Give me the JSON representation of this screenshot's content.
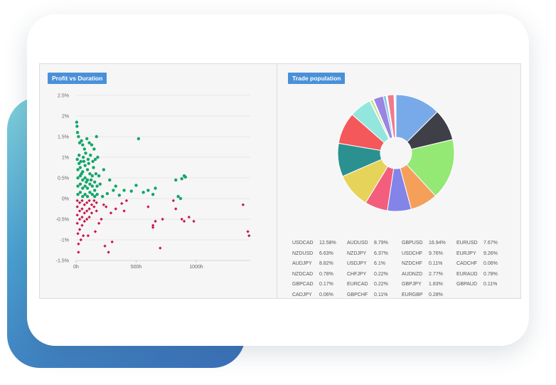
{
  "left_panel": {
    "title": "Profit vs Duration"
  },
  "right_panel": {
    "title": "Trade population"
  },
  "colors": {
    "profit": "#13a669",
    "loss": "#c8174d",
    "badge": "#4a90d9"
  },
  "chart_data": [
    {
      "type": "scatter",
      "title": "Profit vs Duration",
      "xlabel": "",
      "ylabel": "",
      "xlim": [
        0,
        1450
      ],
      "ylim": [
        -1.5,
        2.5
      ],
      "x_ticks": [
        "0h",
        "500h",
        "1000h"
      ],
      "x_tick_values": [
        0,
        500,
        1000
      ],
      "y_ticks": [
        "2.5%",
        "2%",
        "1.5%",
        "1%",
        "0.5%",
        "0%",
        "-0.5%",
        "-1%",
        "-1.5%"
      ],
      "y_tick_values": [
        2.5,
        2,
        1.5,
        1,
        0.5,
        0,
        -0.5,
        -1,
        -1.5
      ],
      "grid": true,
      "series": [
        {
          "color": "#13a669",
          "marker": "circle",
          "points": [
            [
              5,
              1.85
            ],
            [
              8,
              1.75
            ],
            [
              12,
              1.6
            ],
            [
              20,
              1.5
            ],
            [
              30,
              1.35
            ],
            [
              45,
              1.4
            ],
            [
              55,
              1.3
            ],
            [
              70,
              1.2
            ],
            [
              90,
              1.45
            ],
            [
              110,
              1.35
            ],
            [
              130,
              1.3
            ],
            [
              150,
              1.2
            ],
            [
              170,
              1.5
            ],
            [
              520,
              1.45
            ],
            [
              10,
              0.95
            ],
            [
              25,
              1.05
            ],
            [
              40,
              0.9
            ],
            [
              60,
              1.0
            ],
            [
              80,
              1.1
            ],
            [
              100,
              0.95
            ],
            [
              120,
              1.05
            ],
            [
              140,
              0.9
            ],
            [
              160,
              0.95
            ],
            [
              180,
              1.0
            ],
            [
              230,
              0.7
            ],
            [
              280,
              0.45
            ],
            [
              330,
              0.3
            ],
            [
              400,
              0.2
            ],
            [
              460,
              0.18
            ],
            [
              500,
              0.32
            ],
            [
              560,
              0.15
            ],
            [
              600,
              0.2
            ],
            [
              640,
              0.1
            ],
            [
              660,
              0.25
            ],
            [
              830,
              0.45
            ],
            [
              850,
              0.05
            ],
            [
              880,
              0.48
            ],
            [
              900,
              0.55
            ],
            [
              910,
              0.52
            ],
            [
              870,
              0.0
            ],
            [
              360,
              0.08
            ],
            [
              310,
              0.2
            ],
            [
              260,
              0.12
            ],
            [
              220,
              0.05
            ],
            [
              200,
              0.35
            ],
            [
              190,
              0.55
            ],
            [
              15,
              0.1
            ],
            [
              15,
              0.3
            ],
            [
              15,
              0.5
            ],
            [
              15,
              0.7
            ],
            [
              35,
              0.15
            ],
            [
              35,
              0.35
            ],
            [
              35,
              0.55
            ],
            [
              35,
              0.75
            ],
            [
              55,
              0.05
            ],
            [
              55,
              0.25
            ],
            [
              55,
              0.45
            ],
            [
              55,
              0.65
            ],
            [
              75,
              0.1
            ],
            [
              75,
              0.3
            ],
            [
              75,
              0.5
            ],
            [
              75,
              0.8
            ],
            [
              95,
              0.05
            ],
            [
              95,
              0.25
            ],
            [
              95,
              0.45
            ],
            [
              95,
              0.7
            ],
            [
              115,
              0.15
            ],
            [
              115,
              0.35
            ],
            [
              115,
              0.6
            ],
            [
              135,
              0.1
            ],
            [
              135,
              0.3
            ],
            [
              135,
              0.55
            ],
            [
              155,
              0.05
            ],
            [
              155,
              0.2
            ],
            [
              155,
              0.4
            ],
            [
              175,
              0.1
            ],
            [
              175,
              0.3
            ],
            [
              25,
              0.85
            ],
            [
              65,
              0.9
            ],
            [
              105,
              0.85
            ],
            [
              145,
              0.75
            ],
            [
              45,
              0.6
            ],
            [
              85,
              0.4
            ],
            [
              125,
              0.45
            ],
            [
              165,
              0.6
            ]
          ]
        },
        {
          "color": "#c8174d",
          "marker": "diamond",
          "points": [
            [
              10,
              -0.05
            ],
            [
              10,
              -0.2
            ],
            [
              10,
              -0.4
            ],
            [
              10,
              -0.6
            ],
            [
              30,
              -0.1
            ],
            [
              30,
              -0.3
            ],
            [
              30,
              -0.5
            ],
            [
              30,
              -0.75
            ],
            [
              50,
              -0.05
            ],
            [
              50,
              -0.25
            ],
            [
              50,
              -0.45
            ],
            [
              50,
              -0.65
            ],
            [
              70,
              -0.15
            ],
            [
              70,
              -0.35
            ],
            [
              70,
              -0.55
            ],
            [
              90,
              -0.1
            ],
            [
              90,
              -0.3
            ],
            [
              90,
              -0.5
            ],
            [
              110,
              -0.05
            ],
            [
              110,
              -0.25
            ],
            [
              110,
              -0.45
            ],
            [
              130,
              -0.15
            ],
            [
              130,
              -0.35
            ],
            [
              150,
              -0.05
            ],
            [
              150,
              -0.2
            ],
            [
              170,
              -0.1
            ],
            [
              170,
              -0.3
            ],
            [
              20,
              -1.1
            ],
            [
              20,
              -1.3
            ],
            [
              40,
              -1.0
            ],
            [
              60,
              -0.9
            ],
            [
              15,
              -0.85
            ],
            [
              100,
              -0.9
            ],
            [
              160,
              -0.8
            ],
            [
              190,
              -0.6
            ],
            [
              240,
              -1.15
            ],
            [
              270,
              -1.3
            ],
            [
              300,
              -1.05
            ],
            [
              210,
              -0.5
            ],
            [
              250,
              -0.2
            ],
            [
              330,
              -0.25
            ],
            [
              400,
              -0.3
            ],
            [
              420,
              -0.05
            ],
            [
              600,
              -0.2
            ],
            [
              640,
              -0.65
            ],
            [
              660,
              -0.55
            ],
            [
              700,
              -1.2
            ],
            [
              640,
              -0.7
            ],
            [
              720,
              -0.5
            ],
            [
              810,
              -0.05
            ],
            [
              830,
              -0.25
            ],
            [
              880,
              -0.5
            ],
            [
              900,
              -0.55
            ],
            [
              940,
              -0.45
            ],
            [
              980,
              -0.55
            ],
            [
              1390,
              -0.15
            ],
            [
              1430,
              -0.8
            ],
            [
              1440,
              -0.9
            ],
            [
              290,
              -0.35
            ],
            [
              230,
              -0.15
            ],
            [
              380,
              -0.12
            ]
          ]
        }
      ]
    },
    {
      "type": "pie",
      "title": "Trade population",
      "slices": [
        {
          "label": "USDCAD",
          "value_text": "12.58%",
          "value": 12.58,
          "color": "#78aaea"
        },
        {
          "label": "AUDUSD",
          "value_text": "8.79%",
          "value": 8.79,
          "color": "#3f3f47"
        },
        {
          "label": "GBPUSD",
          "value_text": "16.94%",
          "value": 16.94,
          "color": "#94e874"
        },
        {
          "label": "EURUSD",
          "value_text": "7.67%",
          "value": 7.67,
          "color": "#f5a05a"
        },
        {
          "label": "NZDUSD",
          "value_text": "6.63%",
          "value": 6.63,
          "color": "#8284e8"
        },
        {
          "label": "NZDJPY",
          "value_text": "6.37%",
          "value": 6.37,
          "color": "#f25e7c"
        },
        {
          "label": "USDCHF",
          "value_text": "9.76%",
          "value": 9.76,
          "color": "#e6d45a"
        },
        {
          "label": "EURJPY",
          "value_text": "9.26%",
          "value": 9.26,
          "color": "#2b9090"
        },
        {
          "label": "AUDJPY",
          "value_text": "8.82%",
          "value": 8.82,
          "color": "#f4585a"
        },
        {
          "label": "USDJPY",
          "value_text": "6.1%",
          "value": 6.1,
          "color": "#92e6de"
        },
        {
          "label": "NZDCHF",
          "value_text": "0.11%",
          "value": 0.11,
          "color": "#f2c5d8"
        },
        {
          "label": "CADCHF",
          "value_text": "0.06%",
          "value": 0.06,
          "color": "#c7d8f0"
        },
        {
          "label": "NZDCAD",
          "value_text": "0.78%",
          "value": 0.78,
          "color": "#c8e68f"
        },
        {
          "label": "CHFJPY",
          "value_text": "0.22%",
          "value": 0.22,
          "color": "#d6c0e8"
        },
        {
          "label": "AUDNZD",
          "value_text": "2.77%",
          "value": 2.77,
          "color": "#9a84e4"
        },
        {
          "label": "EURAUD",
          "value_text": "0.78%",
          "value": 0.78,
          "color": "#7fc8e8"
        },
        {
          "label": "GBPCAD",
          "value_text": "0.17%",
          "value": 0.17,
          "color": "#e3e3a8"
        },
        {
          "label": "EURCAD",
          "value_text": "0.22%",
          "value": 0.22,
          "color": "#b0e0b0"
        },
        {
          "label": "GBPJPY",
          "value_text": "1.83%",
          "value": 1.83,
          "color": "#f07a8f"
        },
        {
          "label": "GBPAUD",
          "value_text": "0.11%",
          "value": 0.11,
          "color": "#a8c8f8"
        },
        {
          "label": "CADJPY",
          "value_text": "0.06%",
          "value": 0.06,
          "color": "#d0d0d0"
        },
        {
          "label": "GBPCHF",
          "value_text": "0.11%",
          "value": 0.11,
          "color": "#e8b88a"
        },
        {
          "label": "EURGBP",
          "value_text": "0.28%",
          "value": 0.28,
          "color": "#b8e8d8"
        }
      ]
    }
  ]
}
